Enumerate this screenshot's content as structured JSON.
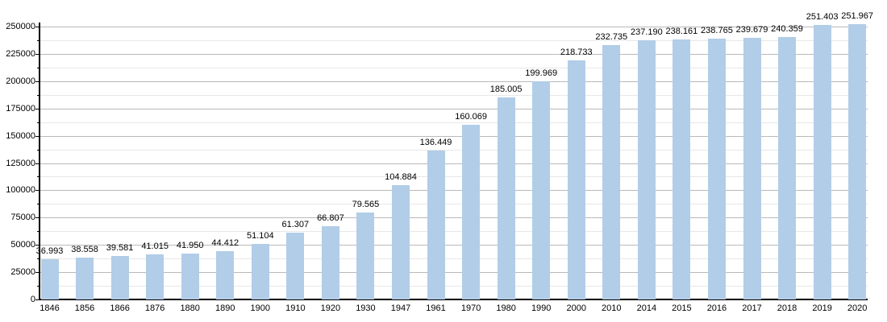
{
  "chart_data": {
    "type": "bar",
    "title": "",
    "xlabel": "",
    "ylabel": "",
    "categories": [
      "1846",
      "1856",
      "1866",
      "1876",
      "1880",
      "1890",
      "1900",
      "1910",
      "1920",
      "1930",
      "1947",
      "1961",
      "1970",
      "1980",
      "1990",
      "2000",
      "2010",
      "2014",
      "2015",
      "2016",
      "2017",
      "2018",
      "2019",
      "2020"
    ],
    "values": [
      36993,
      38558,
      39581,
      41015,
      41950,
      44412,
      51104,
      61307,
      66807,
      79565,
      104884,
      136449,
      160069,
      185005,
      199969,
      218733,
      232735,
      237190,
      238161,
      238765,
      239679,
      240359,
      251403,
      251967
    ],
    "value_labels": [
      "36.993",
      "38.558",
      "39.581",
      "41.015",
      "41.950",
      "44.412",
      "51.104",
      "61.307",
      "66.807",
      "79.565",
      "104.884",
      "136.449",
      "160.069",
      "185.005",
      "199.969",
      "218.733",
      "232.735",
      "237.190",
      "238.161",
      "238.765",
      "239.679",
      "240.359",
      "251.403",
      "251.967"
    ],
    "ylim": [
      0,
      250000
    ],
    "y_major_step": 25000,
    "y_minor_step": 12500,
    "y_tick_labels": [
      "0",
      "25000",
      "50000",
      "75000",
      "100000",
      "125000",
      "150000",
      "175000",
      "200000",
      "225000",
      "250000"
    ],
    "grid": "on",
    "legend": "none",
    "colors": {
      "bar_fill": "#b2cde7",
      "grid_major": "#b9b9b9",
      "grid_minor": "#e7e7e7",
      "axis": "#000000",
      "text": "#000000",
      "background": "#ffffff"
    }
  }
}
